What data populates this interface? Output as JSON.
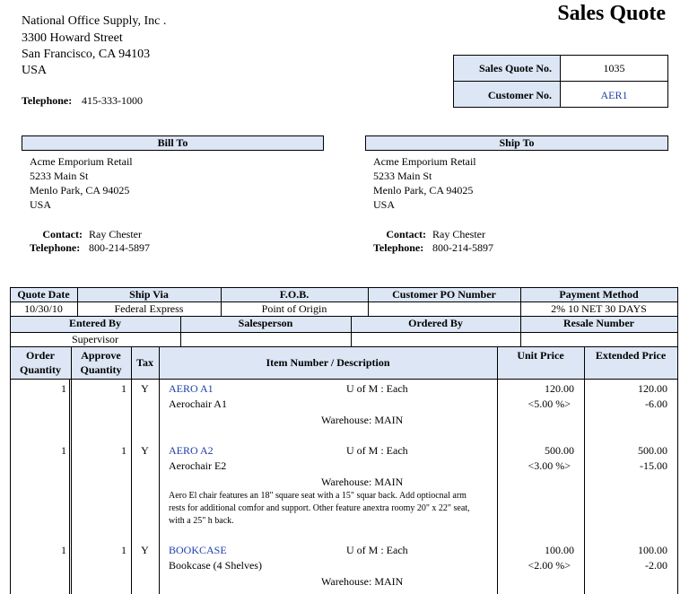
{
  "title": "Sales Quote",
  "company": {
    "name": "National Office Supply, Inc .",
    "address": [
      "3300  Howard Street",
      "San Francisco, CA 94103",
      "USA"
    ],
    "telephone_label": "Telephone:",
    "telephone": "415-333-1000"
  },
  "quote_info": {
    "rows": [
      [
        "Sales Quote No.",
        "1035"
      ],
      [
        "Customer No.",
        "AER1"
      ]
    ]
  },
  "bill_to": {
    "heading": "Bill To",
    "lines": [
      "Acme Emporium Retail",
      "5233  Main St",
      "Menlo Park, CA  94025",
      "USA"
    ],
    "contact_label": "Contact:",
    "contact": "Ray Chester",
    "telephone_label": "Telephone:",
    "telephone": "800-214-5897"
  },
  "ship_to": {
    "heading": "Ship To",
    "lines": [
      "Acme Emporium Retail",
      "5233  Main St",
      "Menlo Park, CA  94025",
      "USA"
    ],
    "contact_label": "Contact:",
    "contact": "Ray Chester",
    "telephone_label": "Telephone:",
    "telephone": "800-214-5897"
  },
  "order_info": {
    "headers1": [
      "Quote Date",
      "Ship Via",
      "F.O.B.",
      "Customer PO Number",
      "Payment Method"
    ],
    "quote_date": "10/30/10",
    "ship_via": "Federal Express",
    "fob": "Point of Origin",
    "payment_method": "2% 10 NET 30 DAYS",
    "headers2": [
      "Entered By",
      "Salesperson",
      "Ordered By",
      "Resale Number"
    ],
    "entered_by": "Supervisor"
  },
  "items_table": {
    "columns": [
      "Order Quantity",
      "Approve Quantity",
      "Tax",
      "Item Number / Description",
      "Unit Price",
      "Extended Price"
    ],
    "rows": [
      {
        "order_qty": "1",
        "approve_qty": "1",
        "tax": "Y",
        "item": "AERO A1",
        "uom": "U of M : Each",
        "description": "Aerochair A1",
        "warehouse": "Warehouse: MAIN",
        "unit_price": "120.00",
        "discount": "<5.00 %>",
        "extended": "120.00",
        "discount_amount": "-6.00"
      },
      {
        "order_qty": "1",
        "approve_qty": "1",
        "tax": "Y",
        "item": "AERO A2",
        "uom": "U of M : Each",
        "description": "Aerochair E2",
        "warehouse": "Warehouse: MAIN",
        "note": "Aero El chair features an 18\" square seat with a 15\" squar back.  Add optiocnal arm rests for additional comfor and support.  Other feature anextra roomy 20\" x 22\" seat, with a 25\" h back.",
        "unit_price": "500.00",
        "discount": "<3.00 %>",
        "extended": "500.00",
        "discount_amount": "-15.00"
      },
      {
        "order_qty": "1",
        "approve_qty": "1",
        "tax": "Y",
        "item": "BOOKCASE",
        "uom": "U of M : Each",
        "description": "Bookcase (4 Shelves)",
        "warehouse": "Warehouse: MAIN",
        "unit_price": "100.00",
        "discount": "<2.00 %>",
        "extended": "100.00",
        "discount_amount": "-2.00"
      }
    ]
  }
}
